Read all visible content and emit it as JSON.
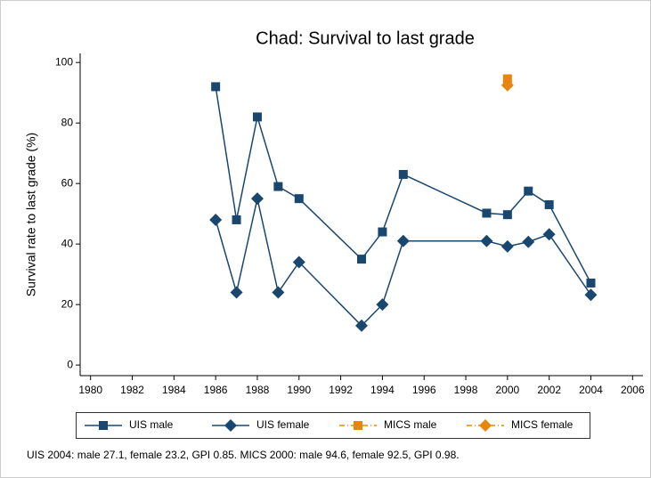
{
  "chart_data": {
    "type": "line",
    "title": "Chad: Survival to last grade",
    "y_label": "Survival rate to last grade (%)",
    "note": "UIS 2004: male 27.1, female 23.2, GPI 0.85. MICS 2000: male 94.6, female 92.5, GPI 0.98.",
    "xlim": [
      1979.5,
      2006.5
    ],
    "xticks": [
      1980,
      1982,
      1984,
      1986,
      1988,
      1990,
      1992,
      1994,
      1996,
      1998,
      2000,
      2002,
      2004,
      2006
    ],
    "ylim": [
      -3.5,
      103
    ],
    "yticks": [
      0,
      20,
      40,
      60,
      80,
      100
    ],
    "grid": false,
    "legend": "bottom",
    "series": [
      {
        "name": "UIS male",
        "color": "#1a476f",
        "marker": "square",
        "dash": false,
        "x": [
          1986,
          1987,
          1988,
          1989,
          1990,
          1993,
          1994,
          1995,
          1999,
          2000,
          2001,
          2002,
          2004
        ],
        "values": [
          92,
          48,
          82,
          59,
          55,
          35,
          44,
          63,
          50.2,
          49.7,
          57.5,
          53,
          27.1
        ]
      },
      {
        "name": "UIS female",
        "color": "#1a476f",
        "marker": "diamond",
        "dash": false,
        "x": [
          1986,
          1987,
          1988,
          1989,
          1990,
          1993,
          1994,
          1995,
          1999,
          2000,
          2001,
          2002,
          2004
        ],
        "values": [
          48,
          24,
          55,
          24,
          34,
          13,
          20,
          41,
          41,
          39.2,
          40.7,
          43.2,
          23.2
        ]
      },
      {
        "name": "MICS male",
        "color": "#e8850c",
        "marker": "square",
        "dash": true,
        "x": [
          2000
        ],
        "values": [
          94.6
        ]
      },
      {
        "name": "MICS female",
        "color": "#e8850c",
        "marker": "diamond",
        "dash": true,
        "x": [
          2000
        ],
        "values": [
          92.5
        ]
      }
    ]
  }
}
